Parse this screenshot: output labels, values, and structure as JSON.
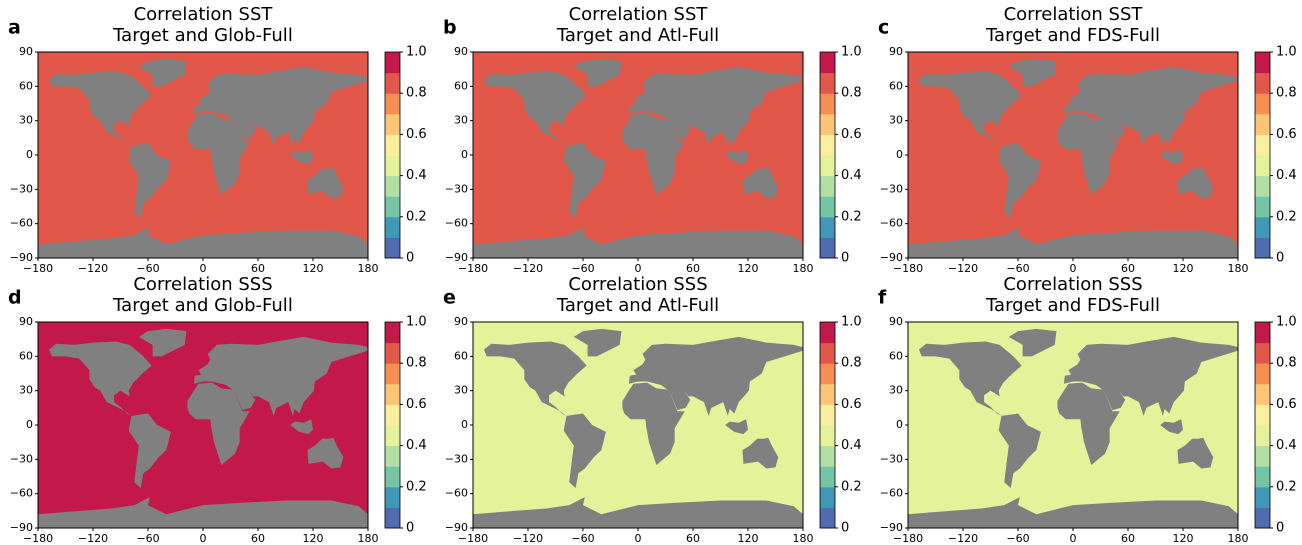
{
  "chart_data": [
    {
      "type": "map",
      "panel_label": "a",
      "title": "Correlation SST",
      "subtitle": "Target and Glob-Full",
      "ocean_color": "#e1584a",
      "xlim": [
        -180,
        180
      ],
      "ylim": [
        -90,
        90
      ],
      "xticks": [
        {
          "value": -180,
          "label": "−180"
        },
        {
          "value": -120,
          "label": "−120"
        },
        {
          "value": -60,
          "label": "−60"
        },
        0,
        60,
        120,
        180
      ],
      "yticks": [
        {
          "value": -90,
          "label": "−90"
        },
        {
          "value": -60,
          "label": "−60"
        },
        {
          "value": -30,
          "label": "−30"
        },
        0,
        30,
        60,
        90
      ],
      "colorbar": {
        "lim": [
          0,
          1
        ],
        "ticks": [
          0,
          0.2,
          0.4,
          0.6,
          0.8,
          {
            "value": 1,
            "label": "1.0"
          }
        ],
        "colors": [
          "#4f6cb0",
          "#3f98b6",
          "#75c5a5",
          "#b2dfa3",
          "#e4f39a",
          "#fbee9c",
          "#fdc674",
          "#f88f52",
          "#e1584a",
          "#c2184a"
        ]
      }
    },
    {
      "type": "map",
      "panel_label": "b",
      "title": "Correlation SST",
      "subtitle": "Target and Atl-Full",
      "ocean_color": "#e1584a",
      "xlim": [
        -180,
        180
      ],
      "ylim": [
        -90,
        90
      ],
      "xticks": [
        {
          "value": -180,
          "label": "−180"
        },
        {
          "value": -120,
          "label": "−120"
        },
        {
          "value": -60,
          "label": "−60"
        },
        0,
        60,
        120,
        180
      ],
      "yticks": [
        {
          "value": -90,
          "label": "−90"
        },
        {
          "value": -60,
          "label": "−60"
        },
        {
          "value": -30,
          "label": "−30"
        },
        0,
        30,
        60,
        90
      ],
      "colorbar": {
        "lim": [
          0,
          1
        ],
        "ticks": [
          0,
          0.2,
          0.4,
          0.6,
          0.8,
          {
            "value": 1,
            "label": "1.0"
          }
        ],
        "colors": [
          "#4f6cb0",
          "#3f98b6",
          "#75c5a5",
          "#b2dfa3",
          "#e4f39a",
          "#fbee9c",
          "#fdc674",
          "#f88f52",
          "#e1584a",
          "#c2184a"
        ]
      }
    },
    {
      "type": "map",
      "panel_label": "c",
      "title": "Correlation SST",
      "subtitle": "Target and FDS-Full",
      "ocean_color": "#e1584a",
      "xlim": [
        -180,
        180
      ],
      "ylim": [
        -90,
        90
      ],
      "xticks": [
        {
          "value": -180,
          "label": "−180"
        },
        {
          "value": -120,
          "label": "−120"
        },
        {
          "value": -60,
          "label": "−60"
        },
        0,
        60,
        120,
        180
      ],
      "yticks": [
        {
          "value": -90,
          "label": "−90"
        },
        {
          "value": -60,
          "label": "−60"
        },
        {
          "value": -30,
          "label": "−30"
        },
        0,
        30,
        60,
        90
      ],
      "colorbar": {
        "lim": [
          0,
          1
        ],
        "ticks": [
          0,
          0.2,
          0.4,
          0.6,
          0.8,
          {
            "value": 1,
            "label": "1.0"
          }
        ],
        "colors": [
          "#4f6cb0",
          "#3f98b6",
          "#75c5a5",
          "#b2dfa3",
          "#e4f39a",
          "#fbee9c",
          "#fdc674",
          "#f88f52",
          "#e1584a",
          "#c2184a"
        ]
      }
    },
    {
      "type": "map",
      "panel_label": "d",
      "title": "Correlation SSS",
      "subtitle": "Target and Glob-Full",
      "ocean_color": "#c2184a",
      "xlim": [
        -180,
        180
      ],
      "ylim": [
        -90,
        90
      ],
      "xticks": [
        {
          "value": -180,
          "label": "−180"
        },
        {
          "value": -120,
          "label": "−120"
        },
        {
          "value": -60,
          "label": "−60"
        },
        0,
        60,
        120,
        180
      ],
      "yticks": [
        {
          "value": -90,
          "label": "−90"
        },
        {
          "value": -60,
          "label": "−60"
        },
        {
          "value": -30,
          "label": "−30"
        },
        0,
        30,
        60,
        90
      ],
      "colorbar": {
        "lim": [
          0,
          1
        ],
        "ticks": [
          0,
          0.2,
          0.4,
          0.6,
          0.8,
          {
            "value": 1,
            "label": "1.0"
          }
        ],
        "colors": [
          "#4f6cb0",
          "#3f98b6",
          "#75c5a5",
          "#b2dfa3",
          "#e4f39a",
          "#fbee9c",
          "#fdc674",
          "#f88f52",
          "#e1584a",
          "#c2184a"
        ]
      }
    },
    {
      "type": "map",
      "panel_label": "e",
      "title": "Correlation SSS",
      "subtitle": "Target and Atl-Full",
      "ocean_color": "#e4f39a",
      "xlim": [
        -180,
        180
      ],
      "ylim": [
        -90,
        90
      ],
      "xticks": [
        {
          "value": -180,
          "label": "−180"
        },
        {
          "value": -120,
          "label": "−120"
        },
        {
          "value": -60,
          "label": "−60"
        },
        0,
        60,
        120,
        180
      ],
      "yticks": [
        {
          "value": -90,
          "label": "−90"
        },
        {
          "value": -60,
          "label": "−60"
        },
        {
          "value": -30,
          "label": "−30"
        },
        0,
        30,
        60,
        90
      ],
      "colorbar": {
        "lim": [
          0,
          1
        ],
        "ticks": [
          0,
          0.2,
          0.4,
          0.6,
          0.8,
          {
            "value": 1,
            "label": "1.0"
          }
        ],
        "colors": [
          "#4f6cb0",
          "#3f98b6",
          "#75c5a5",
          "#b2dfa3",
          "#e4f39a",
          "#fbee9c",
          "#fdc674",
          "#f88f52",
          "#e1584a",
          "#c2184a"
        ]
      }
    },
    {
      "type": "map",
      "panel_label": "f",
      "title": "Correlation SSS",
      "subtitle": "Target and FDS-Full",
      "ocean_color": "#e4f39a",
      "xlim": [
        -180,
        180
      ],
      "ylim": [
        -90,
        90
      ],
      "xticks": [
        {
          "value": -180,
          "label": "−180"
        },
        {
          "value": -120,
          "label": "−120"
        },
        {
          "value": -60,
          "label": "−60"
        },
        0,
        60,
        120,
        180
      ],
      "yticks": [
        {
          "value": -90,
          "label": "−90"
        },
        {
          "value": -60,
          "label": "−60"
        },
        {
          "value": -30,
          "label": "−30"
        },
        0,
        30,
        60,
        90
      ],
      "colorbar": {
        "lim": [
          0,
          1
        ],
        "ticks": [
          0,
          0.2,
          0.4,
          0.6,
          0.8,
          {
            "value": 1,
            "label": "1.0"
          }
        ],
        "colors": [
          "#4f6cb0",
          "#3f98b6",
          "#75c5a5",
          "#b2dfa3",
          "#e4f39a",
          "#fbee9c",
          "#fdc674",
          "#f88f52",
          "#e1584a",
          "#c2184a"
        ]
      }
    }
  ]
}
